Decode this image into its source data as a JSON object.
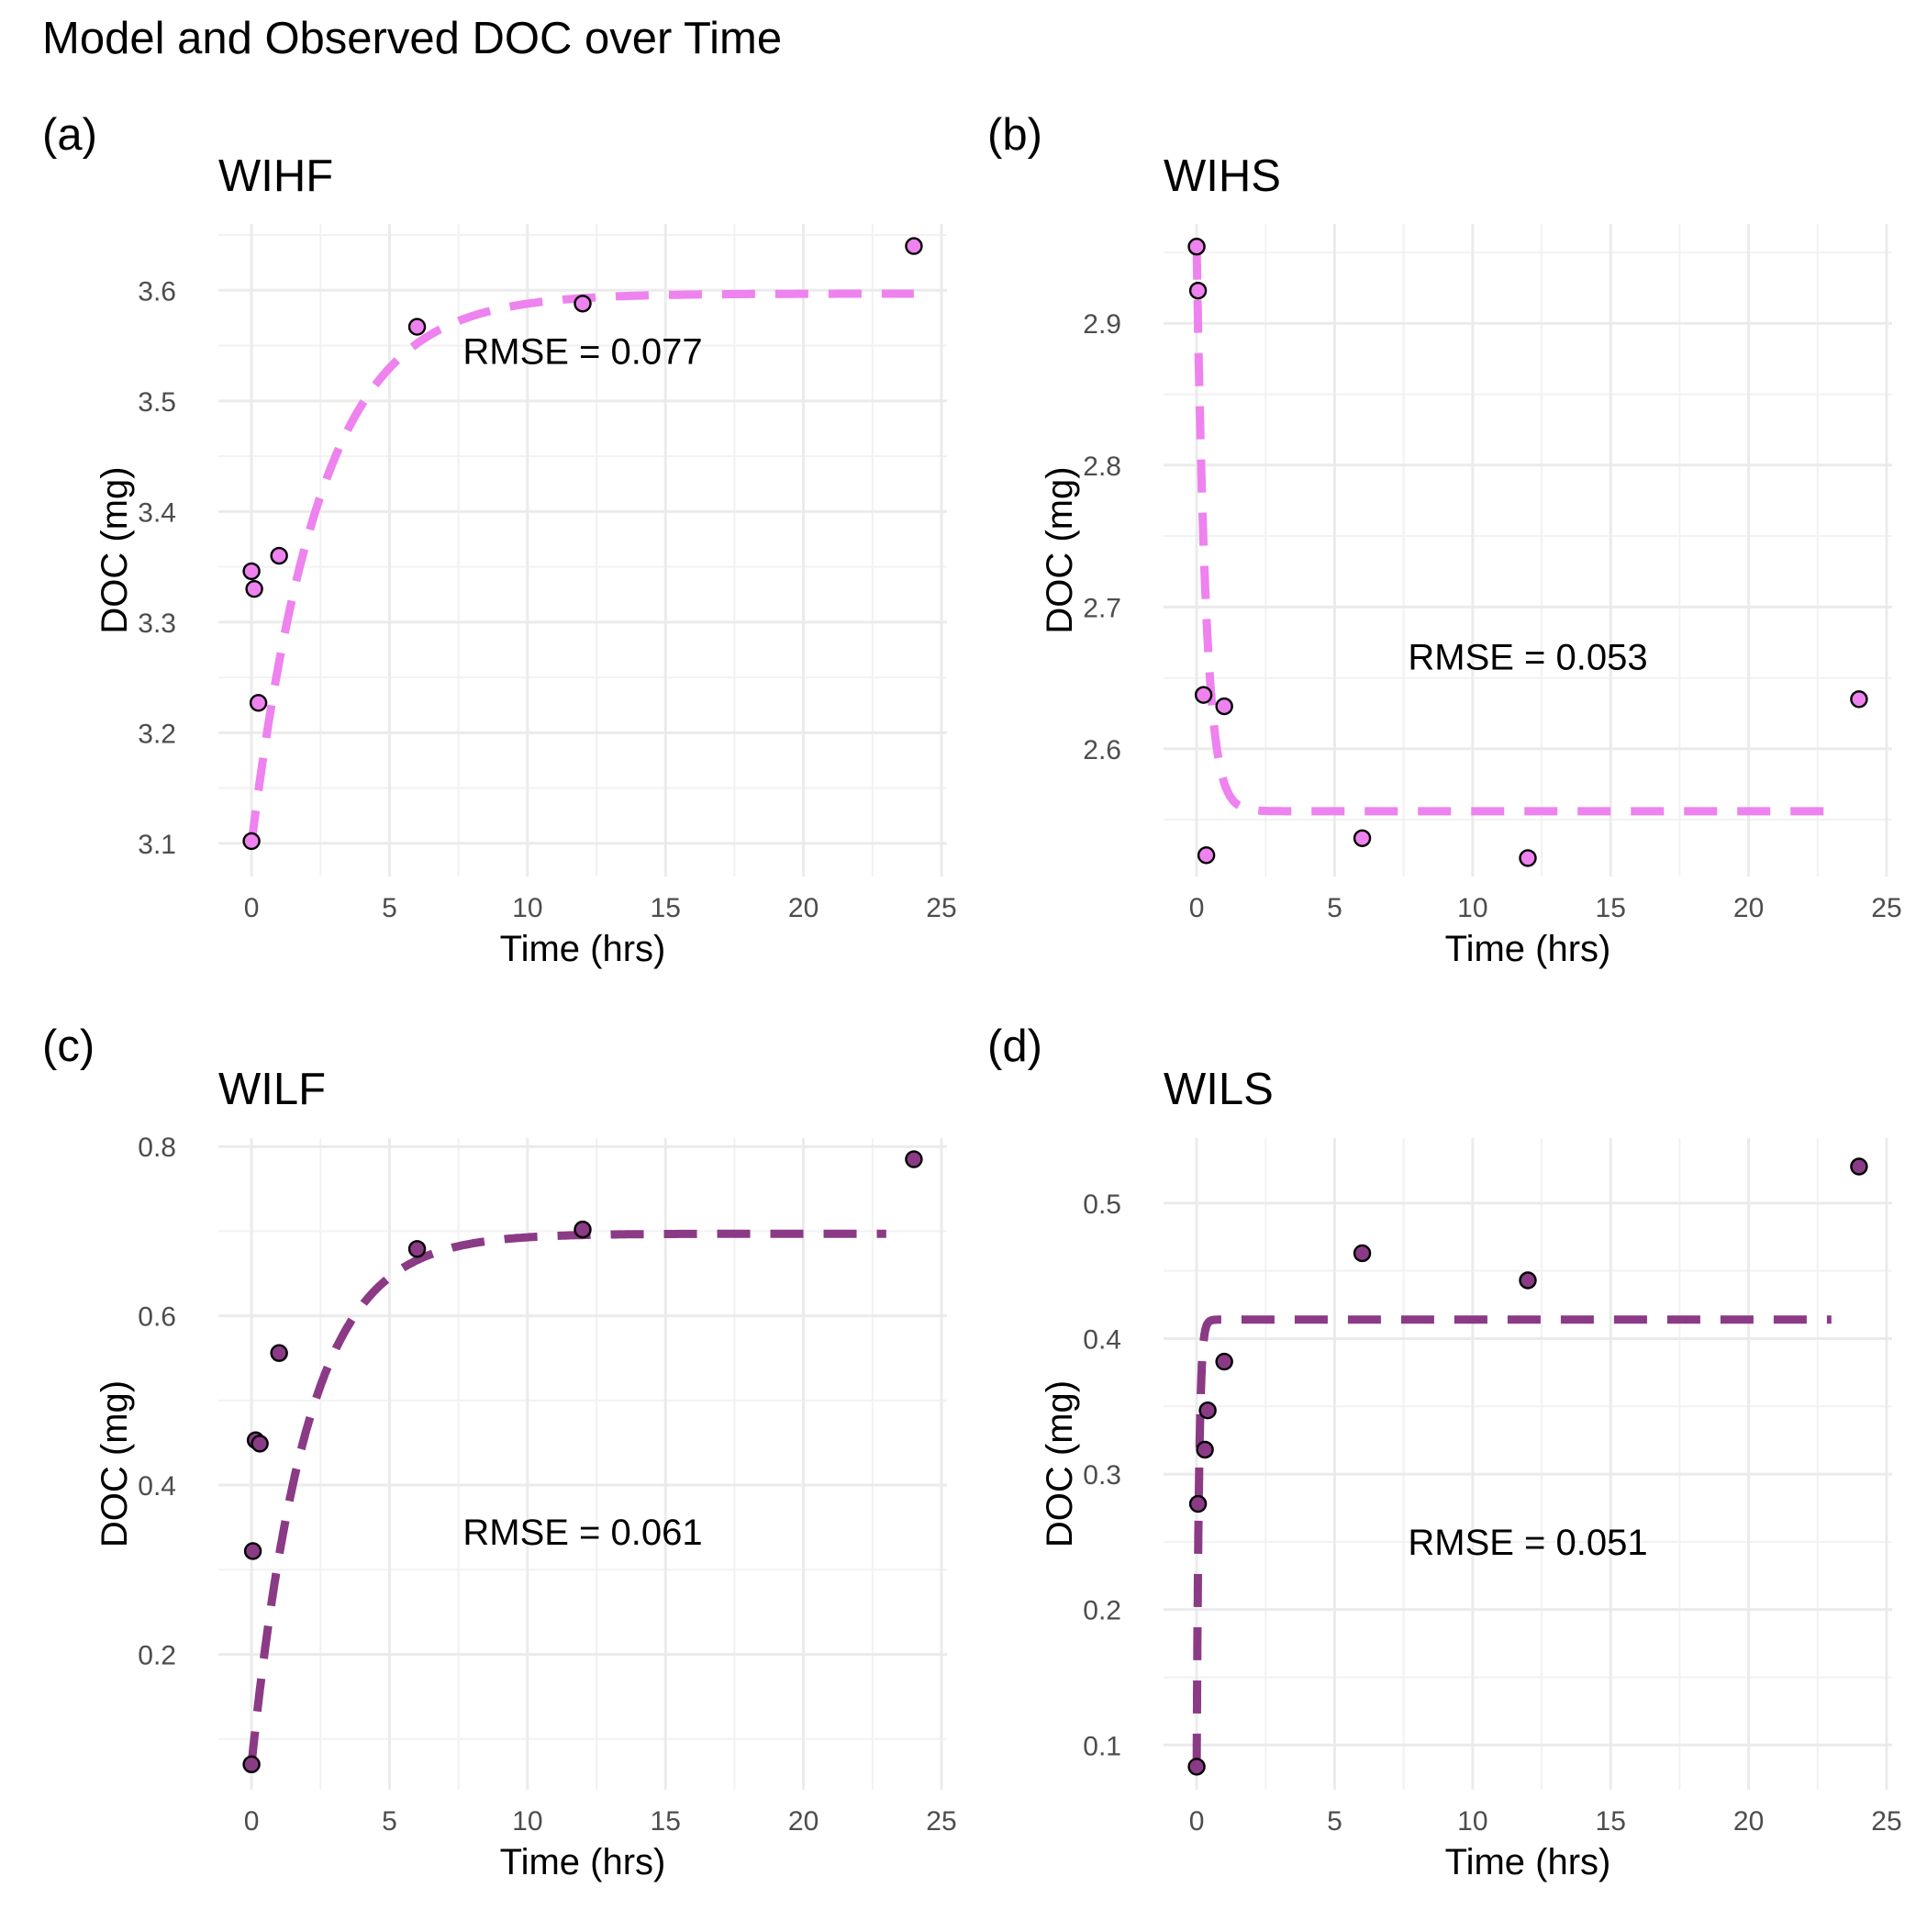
{
  "title": "Model and Observed DOC over Time",
  "chart_data": [
    {
      "type": "scatter",
      "panel_label": "(a)",
      "title": "WIHF",
      "xlabel": "Time (hrs)",
      "ylabel": "DOC (mg)",
      "xlim": [
        -1.2,
        25.2
      ],
      "ylim": [
        3.07,
        3.66
      ],
      "xticks": [
        0,
        5,
        10,
        15,
        20,
        25
      ],
      "yticks": [
        3.1,
        3.2,
        3.3,
        3.4,
        3.5,
        3.6
      ],
      "yticklabels": [
        "3.1",
        "3.2",
        "3.3",
        "3.4",
        "3.5",
        "3.6"
      ],
      "grid": true,
      "color": "#EE82EE",
      "annotation": {
        "text": "RMSE = 0.077",
        "x": 12,
        "y": 3.545
      },
      "observed": {
        "x": [
          0,
          0,
          0.1,
          0.25,
          1,
          6,
          12,
          24
        ],
        "y": [
          3.102,
          3.346,
          3.33,
          3.227,
          3.36,
          3.567,
          3.588,
          3.64
        ]
      },
      "model": {
        "form": "saturating",
        "c0": 3.1,
        "c_inf": 3.597,
        "k": 0.4,
        "x_end": 24,
        "line": "dashed"
      }
    },
    {
      "type": "scatter",
      "panel_label": "(b)",
      "title": "WIHS",
      "xlabel": "Time (hrs)",
      "ylabel": "DOC (mg)",
      "xlim": [
        -1.2,
        25.2
      ],
      "ylim": [
        2.51,
        2.97
      ],
      "xticks": [
        0,
        5,
        10,
        15,
        20,
        25
      ],
      "yticks": [
        2.6,
        2.7,
        2.8,
        2.9
      ],
      "yticklabels": [
        "2.6",
        "2.7",
        "2.8",
        "2.9"
      ],
      "grid": true,
      "color": "#EE82EE",
      "annotation": {
        "text": "RMSE = 0.053",
        "x": 12,
        "y": 2.665
      },
      "observed": {
        "x": [
          0,
          0.05,
          0.25,
          0.35,
          1,
          6,
          12,
          24
        ],
        "y": [
          2.954,
          2.923,
          2.638,
          2.525,
          2.63,
          2.537,
          2.523,
          2.635
        ]
      },
      "model": {
        "form": "decay",
        "c0": 2.954,
        "c_inf": 2.556,
        "k": 3,
        "x_end": 23,
        "line": "dashed"
      }
    },
    {
      "type": "scatter",
      "panel_label": "(c)",
      "title": "WILF",
      "xlabel": "Time (hrs)",
      "ylabel": "DOC (mg)",
      "xlim": [
        -1.2,
        25.2
      ],
      "ylim": [
        0.04,
        0.81
      ],
      "xticks": [
        0,
        5,
        10,
        15,
        20,
        25
      ],
      "yticks": [
        0.2,
        0.4,
        0.6,
        0.8
      ],
      "yticklabels": [
        "0.2",
        "0.4",
        "0.6",
        "0.8"
      ],
      "grid": true,
      "color": "#8B3A86",
      "annotation": {
        "text": "RMSE = 0.061",
        "x": 12,
        "y": 0.345
      },
      "observed": {
        "x": [
          0,
          0.05,
          0.15,
          0.3,
          1,
          6,
          12,
          24
        ],
        "y": [
          0.07,
          0.322,
          0.453,
          0.449,
          0.556,
          0.679,
          0.702,
          0.785
        ]
      },
      "model": {
        "form": "saturating",
        "c0": 0.07,
        "c_inf": 0.697,
        "k": 0.5,
        "x_end": 23,
        "line": "dashed"
      }
    },
    {
      "type": "scatter",
      "panel_label": "(d)",
      "title": "WILS",
      "xlabel": "Time (hrs)",
      "ylabel": "DOC (mg)",
      "xlim": [
        -1.2,
        25.2
      ],
      "ylim": [
        0.067,
        0.548
      ],
      "xticks": [
        0,
        5,
        10,
        15,
        20,
        25
      ],
      "yticks": [
        0.1,
        0.2,
        0.3,
        0.4,
        0.5
      ],
      "yticklabels": [
        "0.1",
        "0.2",
        "0.3",
        "0.4",
        "0.5"
      ],
      "grid": true,
      "color": "#8B3A86",
      "annotation": {
        "text": "RMSE = 0.051",
        "x": 12,
        "y": 0.25
      },
      "observed": {
        "x": [
          0,
          0.05,
          0.3,
          0.4,
          1,
          6,
          12,
          24
        ],
        "y": [
          0.084,
          0.278,
          0.318,
          0.347,
          0.383,
          0.463,
          0.443,
          0.527
        ]
      },
      "model": {
        "form": "saturating",
        "c0": 0.084,
        "c_inf": 0.414,
        "k": 12,
        "x_end": 23,
        "line": "dashed"
      }
    }
  ]
}
